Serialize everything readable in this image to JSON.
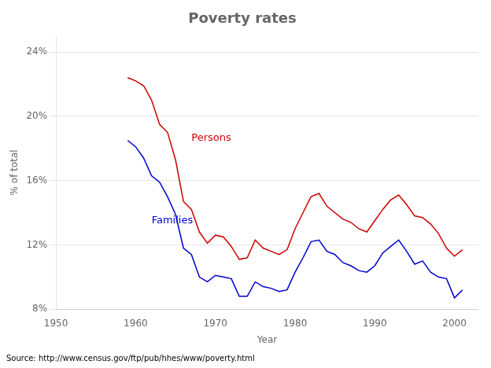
{
  "chart_data": {
    "type": "line",
    "title": "Poverty rates",
    "xlabel": "Year",
    "ylabel": "% of total",
    "source": "Source: http://www.census.gov/ftp/pub/hhes/www/poverty.html",
    "x": [
      1959,
      1960,
      1961,
      1962,
      1963,
      1964,
      1965,
      1966,
      1967,
      1968,
      1969,
      1970,
      1971,
      1972,
      1973,
      1974,
      1975,
      1976,
      1977,
      1978,
      1979,
      1980,
      1981,
      1982,
      1983,
      1984,
      1985,
      1986,
      1987,
      1988,
      1989,
      1990,
      1991,
      1992,
      1993,
      1994,
      1995,
      1996,
      1997,
      1998,
      1999,
      2000,
      2001
    ],
    "series": [
      {
        "name": "Persons",
        "color": "#cc0000",
        "values": [
          22.4,
          22.2,
          21.9,
          21.0,
          19.5,
          19.0,
          17.3,
          14.7,
          14.2,
          12.8,
          12.1,
          12.6,
          12.5,
          11.9,
          11.1,
          11.2,
          12.3,
          11.8,
          11.6,
          11.4,
          11.7,
          13.0,
          14.0,
          15.0,
          15.2,
          14.4,
          14.0,
          13.6,
          13.4,
          13.0,
          12.8,
          13.5,
          14.2,
          14.8,
          15.1,
          14.5,
          13.8,
          13.7,
          13.3,
          12.7,
          11.8,
          11.3,
          11.7
        ]
      },
      {
        "name": "Families",
        "color": "#0000cc",
        "values": [
          18.5,
          18.1,
          17.4,
          16.3,
          15.9,
          15.0,
          13.9,
          11.8,
          11.4,
          10.0,
          9.7,
          10.1,
          10.0,
          9.9,
          8.8,
          8.8,
          9.7,
          9.4,
          9.3,
          9.1,
          9.2,
          10.3,
          11.2,
          12.2,
          12.3,
          11.6,
          11.4,
          10.9,
          10.7,
          10.4,
          10.3,
          10.7,
          11.5,
          11.9,
          12.3,
          11.6,
          10.8,
          11.0,
          10.3,
          10.0,
          9.9,
          8.7,
          9.2
        ]
      }
    ],
    "annotations": [
      {
        "text": "Persons",
        "x": 1967,
        "y": 18.3,
        "color": "#cc0000"
      },
      {
        "text": "Families",
        "x": 1962,
        "y": 13.2,
        "color": "#0000cc"
      }
    ],
    "xlim": [
      1950,
      2003
    ],
    "xticks": [
      1950,
      1960,
      1970,
      1980,
      1990,
      2000
    ],
    "ylim": [
      8,
      25
    ],
    "yticks": [
      {
        "value": 8,
        "label": "8%"
      },
      {
        "value": 12,
        "label": "12%"
      },
      {
        "value": 16,
        "label": "16%"
      },
      {
        "value": 20,
        "label": "20%"
      },
      {
        "value": 24,
        "label": "24%"
      }
    ],
    "grid": true
  }
}
